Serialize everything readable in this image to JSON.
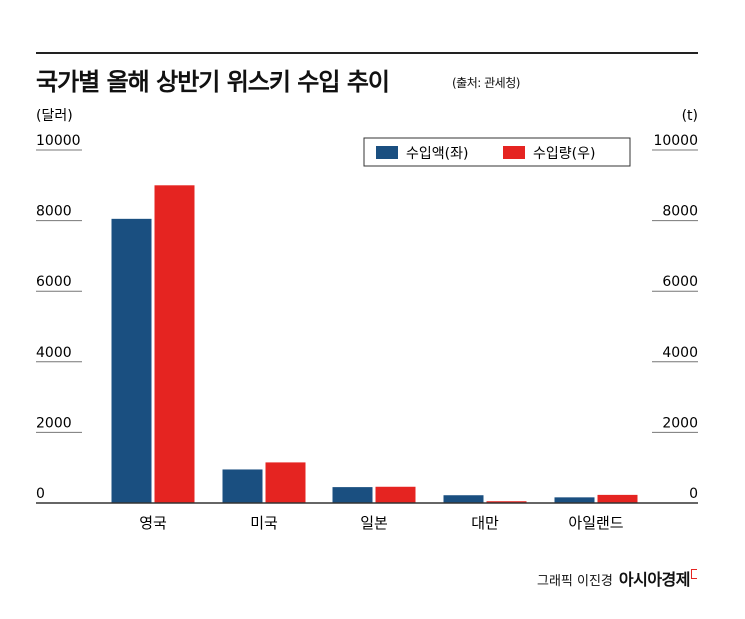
{
  "header": {
    "title": "국가별 올해 상반기 위스키 수입 추이",
    "source": "(출처: 관세청)"
  },
  "footer": {
    "credit": "그래픽 이진경",
    "brand": "아시아경제"
  },
  "colors": {
    "import_amount": "#1a4f80",
    "import_volume": "#e52421"
  },
  "chart_data": {
    "type": "bar",
    "categories": [
      "영국",
      "미국",
      "일본",
      "대만",
      "아일랜드"
    ],
    "series": [
      {
        "name": "수입액(좌)",
        "axis": "left",
        "values": [
          8050,
          950,
          450,
          220,
          160
        ]
      },
      {
        "name": "수입량(우)",
        "axis": "right",
        "values": [
          9000,
          1150,
          460,
          50,
          230
        ]
      }
    ],
    "ylabel_left": "(달러)",
    "ylabel_right": "(t)",
    "yticks_left": [
      "10000",
      "8000",
      "6000",
      "4000",
      "2000",
      "0"
    ],
    "yticks_right": [
      "10000",
      "8000",
      "6000",
      "4000",
      "2000",
      "0"
    ],
    "ylim_left": [
      0,
      10000
    ],
    "ylim_right": [
      0,
      10000
    ],
    "grid": true,
    "legend_position": "top-right"
  }
}
